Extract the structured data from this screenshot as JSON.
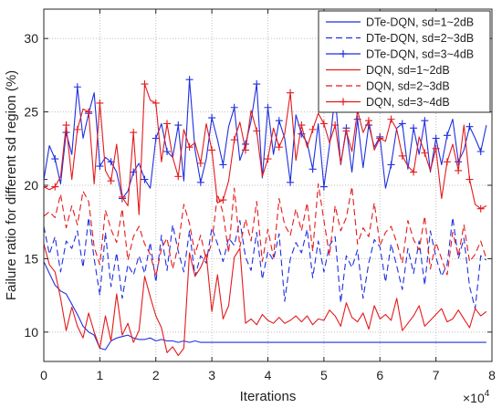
{
  "chart_data": {
    "type": "line",
    "title": "",
    "xlabel": "Iterations",
    "ylabel": "Failure ratio for different sd region (%)",
    "x_multiplier_label": "×10",
    "x_multiplier_exp": "4",
    "xlim": [
      0,
      8
    ],
    "ylim": [
      8,
      32
    ],
    "xticks": [
      0,
      1,
      2,
      3,
      4,
      5,
      6,
      7,
      8
    ],
    "yticks": [
      10,
      15,
      20,
      25,
      30
    ],
    "grid": true,
    "legend_position": "top-right",
    "x": [
      0.0,
      0.1,
      0.2,
      0.3,
      0.4,
      0.5,
      0.6,
      0.7,
      0.8,
      0.9,
      1.0,
      1.1,
      1.2,
      1.3,
      1.4,
      1.5,
      1.6,
      1.7,
      1.8,
      1.9,
      2.0,
      2.1,
      2.2,
      2.3,
      2.4,
      2.5,
      2.6,
      2.7,
      2.8,
      2.9,
      3.0,
      3.1,
      3.2,
      3.3,
      3.4,
      3.5,
      3.6,
      3.7,
      3.8,
      3.9,
      4.0,
      4.1,
      4.2,
      4.3,
      4.4,
      4.5,
      4.6,
      4.7,
      4.8,
      4.9,
      5.0,
      5.1,
      5.2,
      5.3,
      5.4,
      5.5,
      5.6,
      5.7,
      5.8,
      5.9,
      6.0,
      6.1,
      6.2,
      6.3,
      6.4,
      6.5,
      6.6,
      6.7,
      6.8,
      6.9,
      7.0,
      7.1,
      7.2,
      7.3,
      7.4,
      7.5,
      7.6,
      7.7,
      7.8,
      7.9
    ],
    "series": [
      {
        "name": "DTe-DQN, sd=1~2dB",
        "color": "#1f2fe0",
        "dash": "solid",
        "marker": "none",
        "values": [
          14.8,
          14.0,
          13.2,
          12.8,
          12.6,
          11.9,
          11.2,
          10.4,
          10.0,
          9.8,
          8.9,
          8.8,
          9.4,
          9.6,
          9.7,
          9.8,
          9.6,
          9.5,
          9.5,
          9.6,
          9.4,
          9.5,
          9.4,
          9.4,
          9.3,
          9.4,
          9.3,
          9.4,
          9.3,
          9.3,
          9.3,
          9.3,
          9.3,
          9.3,
          9.3,
          9.3,
          9.3,
          9.3,
          9.3,
          9.3,
          9.3,
          9.3,
          9.3,
          9.3,
          9.3,
          9.3,
          9.3,
          9.3,
          9.3,
          9.3,
          9.3,
          9.3,
          9.3,
          9.3,
          9.3,
          9.3,
          9.3,
          9.3,
          9.3,
          9.3,
          9.3,
          9.3,
          9.3,
          9.3,
          9.3,
          9.3,
          9.3,
          9.3,
          9.3,
          9.3,
          9.3,
          9.3,
          9.3,
          9.3,
          9.3,
          9.3,
          9.3,
          9.3,
          9.3,
          9.3
        ]
      },
      {
        "name": "DTe-DQN, sd=2~3dB",
        "color": "#1f2fe0",
        "dash": "dashed",
        "marker": "none",
        "values": [
          17.2,
          15.3,
          16.5,
          14.1,
          16.2,
          15.7,
          16.9,
          14.4,
          17.8,
          15.0,
          12.5,
          16.8,
          13.1,
          15.4,
          12.3,
          14.6,
          13.9,
          15.2,
          14.0,
          16.1,
          13.4,
          16.6,
          14.2,
          17.3,
          15.5,
          14.1,
          16.9,
          13.8,
          15.2,
          14.7,
          17.1,
          16.0,
          14.8,
          16.4,
          15.9,
          17.6,
          15.1,
          14.2,
          16.8,
          13.6,
          15.5,
          14.9,
          16.7,
          12.1,
          15.0,
          16.1,
          15.4,
          17.0,
          13.7,
          16.2,
          14.1,
          15.9,
          16.5,
          12.0,
          15.2,
          14.4,
          15.6,
          12.3,
          14.7,
          16.3,
          15.8,
          13.4,
          16.0,
          14.5,
          12.9,
          15.7,
          14.0,
          16.2,
          13.2,
          16.9,
          15.1,
          13.8,
          14.6,
          17.8,
          15.0,
          16.4,
          13.1,
          11.6,
          15.2,
          14.9
        ]
      },
      {
        "name": "DTe-DQN, sd=3~4dB",
        "color": "#1f2fe0",
        "dash": "solid",
        "marker": "+",
        "values": [
          20.4,
          22.7,
          21.8,
          20.1,
          23.6,
          22.1,
          26.7,
          23.2,
          24.9,
          26.3,
          21.3,
          21.9,
          21.6,
          20.9,
          19.1,
          19.6,
          20.9,
          21.5,
          20.4,
          19.8,
          23.2,
          24.2,
          22.3,
          21.9,
          24.1,
          20.3,
          27.2,
          22.4,
          20.2,
          21.8,
          24.6,
          23.1,
          21.4,
          24.0,
          25.3,
          21.7,
          22.8,
          24.4,
          26.9,
          20.5,
          25.3,
          22.1,
          24.4,
          23.2,
          20.2,
          24.8,
          23.5,
          22.9,
          21.1,
          24.2,
          19.9,
          22.7,
          26.2,
          21.4,
          23.9,
          20.9,
          24.5,
          21.2,
          24.1,
          22.6,
          23.3,
          19.8,
          21.4,
          23.9,
          24.2,
          21.1,
          23.9,
          22.1,
          24.4,
          20.9,
          23.2,
          21.4,
          23.4,
          24.5,
          21.6,
          22.4,
          24.0,
          23.2,
          22.3,
          24.1
        ]
      },
      {
        "name": "DQN, sd=1~2dB",
        "color": "#e41a1c",
        "dash": "solid",
        "marker": "none",
        "values": [
          16.0,
          14.6,
          14.1,
          12.3,
          10.1,
          11.7,
          10.4,
          9.6,
          11.3,
          10.0,
          8.9,
          11.1,
          9.4,
          12.6,
          9.8,
          10.6,
          9.3,
          10.1,
          13.8,
          12.4,
          11.1,
          10.3,
          8.6,
          9.0,
          8.4,
          8.9,
          15.4,
          13.8,
          14.4,
          15.3,
          11.4,
          13.9,
          10.9,
          11.8,
          15.1,
          15.7,
          10.6,
          10.9,
          10.5,
          11.2,
          10.8,
          10.6,
          11.0,
          10.6,
          10.8,
          11.1,
          10.7,
          11.1,
          10.5,
          10.9,
          10.8,
          11.5,
          11.1,
          10.4,
          12.0,
          11.0,
          10.7,
          11.3,
          10.2,
          11.8,
          10.9,
          11.2,
          10.8,
          12.3,
          10.1,
          10.6,
          11.1,
          11.8,
          10.4,
          10.8,
          11.2,
          11.6,
          10.7,
          10.9,
          11.5,
          10.9,
          10.3,
          11.6,
          11.1,
          11.4
        ]
      },
      {
        "name": "DQN, sd=2~3dB",
        "color": "#e41a1c",
        "dash": "dashed",
        "marker": "none",
        "values": [
          17.9,
          18.2,
          17.8,
          19.4,
          17.1,
          18.6,
          17.3,
          19.6,
          18.9,
          15.8,
          14.6,
          18.3,
          17.0,
          16.1,
          18.4,
          14.9,
          16.5,
          17.2,
          16.0,
          15.3,
          13.8,
          15.7,
          16.4,
          14.3,
          15.9,
          18.7,
          17.4,
          15.3,
          16.6,
          14.9,
          16.1,
          19.4,
          18.1,
          15.4,
          19.8,
          15.8,
          17.7,
          16.2,
          18.9,
          14.8,
          17.0,
          15.1,
          19.1,
          17.3,
          16.6,
          18.4,
          16.9,
          18.8,
          15.5,
          20.1,
          17.6,
          15.2,
          18.6,
          16.9,
          17.8,
          19.9,
          16.0,
          17.1,
          16.5,
          18.8,
          15.9,
          16.8,
          17.2,
          16.1,
          14.7,
          17.6,
          16.3,
          15.6,
          17.9,
          14.3,
          16.1,
          15.0,
          13.9,
          16.8,
          15.2,
          17.3,
          14.8,
          15.3,
          16.2,
          15.0
        ]
      },
      {
        "name": "DQN, sd=3~4dB",
        "color": "#e41a1c",
        "dash": "solid",
        "marker": "+",
        "values": [
          19.9,
          19.7,
          19.9,
          20.6,
          24.1,
          20.4,
          23.8,
          25.2,
          25.0,
          20.1,
          25.6,
          21.0,
          20.3,
          22.8,
          19.2,
          18.6,
          23.6,
          18.0,
          26.9,
          25.8,
          25.6,
          21.6,
          24.2,
          21.9,
          20.6,
          23.8,
          22.6,
          22.9,
          21.5,
          24.2,
          22.4,
          18.8,
          19.0,
          20.3,
          23.1,
          24.3,
          22.4,
          25.1,
          23.7,
          20.6,
          21.8,
          23.9,
          22.6,
          23.5,
          26.3,
          21.7,
          24.1,
          22.6,
          23.8,
          24.9,
          24.2,
          22.9,
          24.1,
          21.5,
          23.7,
          22.3,
          25.1,
          23.6,
          24.4,
          22.4,
          23.2,
          23.0,
          24.5,
          23.8,
          22.0,
          21.3,
          20.9,
          23.3,
          22.2,
          21.0,
          22.5,
          19.1,
          21.6,
          22.8,
          21.0,
          24.1,
          20.4,
          18.7,
          18.4,
          18.6
        ]
      }
    ]
  }
}
